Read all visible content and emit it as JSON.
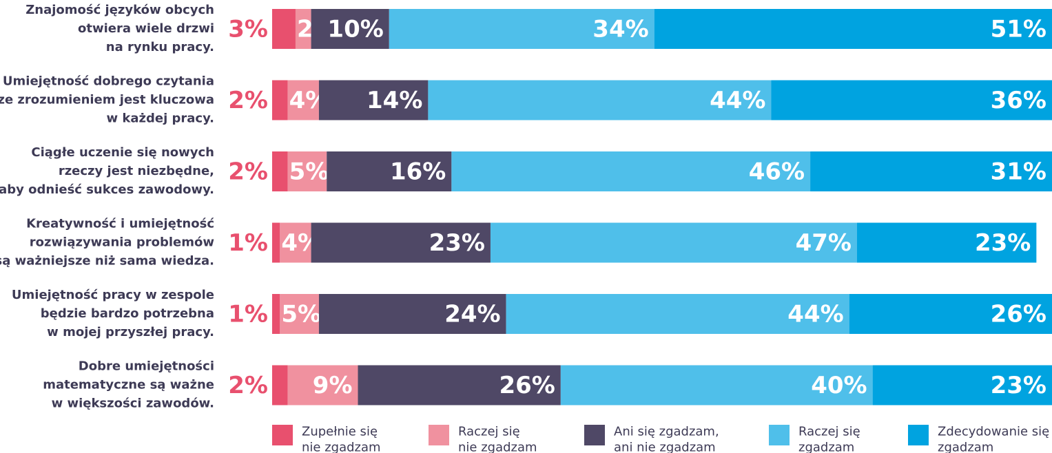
{
  "chart_data": {
    "type": "stacked-bar",
    "orientation": "horizontal",
    "categories": [
      "Znajomość języków obcych\notwiera wiele drzwi\nna rynku pracy.",
      "Umiejętność dobrego czytania\nze zrozumieniem jest kluczowa\nw każdej pracy.",
      "Ciągłe uczenie się nowych\nrzeczy jest niezbędne,\naby odnieść sukces zawodowy.",
      "Kreatywność i umiejętność\nrozwiązywania problemów\nsą ważniejsze niż sama wiedza.",
      "Umiejętność pracy w zespole\nbędzie bardzo potrzebna\nw mojej przyszłej pracy.",
      "Dobre umiejętności\nmatematyczne są ważne\nw większości zawodów."
    ],
    "series": [
      {
        "name": "Zupełnie się\nnie zgadzam",
        "color": "#e8506e",
        "values": [
          3,
          2,
          2,
          1,
          1,
          2
        ],
        "value_labels": [
          "3%",
          "2%",
          "2%",
          "1%",
          "1%",
          "2%"
        ]
      },
      {
        "name": "Raczej się\nnie zgadzam",
        "color": "#f0919f",
        "values": [
          2,
          4,
          5,
          4,
          5,
          9
        ],
        "value_labels": [
          "2%",
          "4%",
          "5%",
          "4%",
          "5%",
          "9%"
        ]
      },
      {
        "name": "Ani się zgadzam,\nani nie zgadzam",
        "color": "#4f4866",
        "values": [
          10,
          14,
          16,
          23,
          24,
          26
        ],
        "value_labels": [
          "10%",
          "14%",
          "16%",
          "23%",
          "24%",
          "26%"
        ]
      },
      {
        "name": "Raczej się\nzgadzam",
        "color": "#4fbfea",
        "values": [
          34,
          44,
          46,
          47,
          44,
          40
        ],
        "value_labels": [
          "34%",
          "44%",
          "46%",
          "47%",
          "44%",
          "40%"
        ]
      },
      {
        "name": "Zdecydowanie się\nzgadzam",
        "color": "#00a3e0",
        "values": [
          51,
          36,
          31,
          23,
          26,
          23
        ],
        "value_labels": [
          "51%",
          "36%",
          "31%",
          "23%",
          "26%",
          "23%"
        ]
      }
    ],
    "xlim": [
      0,
      100
    ]
  }
}
